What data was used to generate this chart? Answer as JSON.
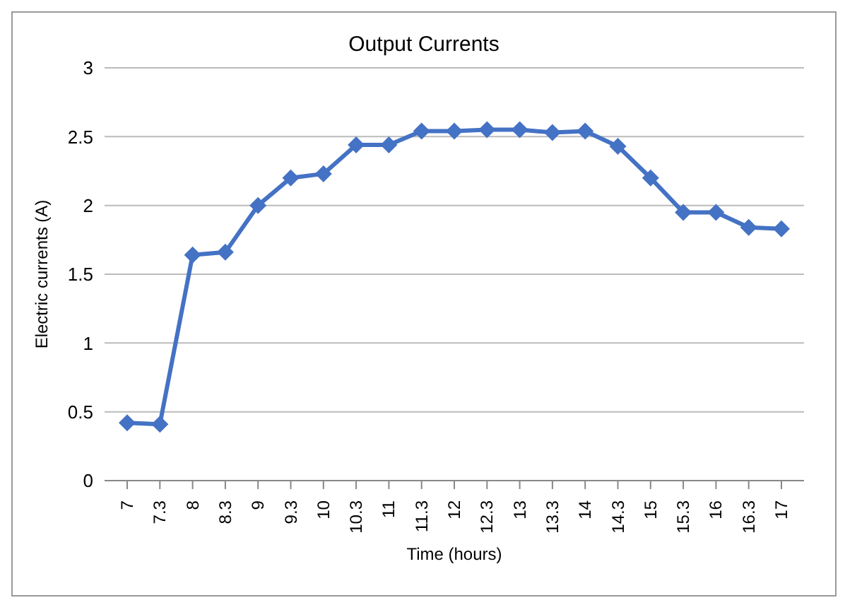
{
  "chart_data": {
    "type": "line",
    "title": "Output Currents",
    "xlabel": "Time (hours)",
    "ylabel": "Electric currents (A)",
    "categories": [
      "7",
      "7.3",
      "8",
      "8.3",
      "9",
      "9.3",
      "10",
      "10.3",
      "11",
      "11.3",
      "12",
      "12.3",
      "13",
      "13.3",
      "14",
      "14.3",
      "15",
      "15.3",
      "16",
      "16.3",
      "17"
    ],
    "series": [
      {
        "color": "#4472c4",
        "values": [
          0.42,
          0.41,
          1.64,
          1.66,
          2.0,
          2.2,
          2.23,
          2.44,
          2.44,
          2.54,
          2.54,
          2.55,
          2.55,
          2.53,
          2.54,
          2.43,
          2.2,
          1.95,
          1.95,
          1.84,
          1.83
        ]
      }
    ],
    "ylim": [
      0,
      3
    ],
    "yticks": [
      0,
      0.5,
      1,
      1.5,
      2,
      2.5,
      3
    ],
    "grid": "y",
    "marker": "diamond",
    "line_style": "solid"
  }
}
